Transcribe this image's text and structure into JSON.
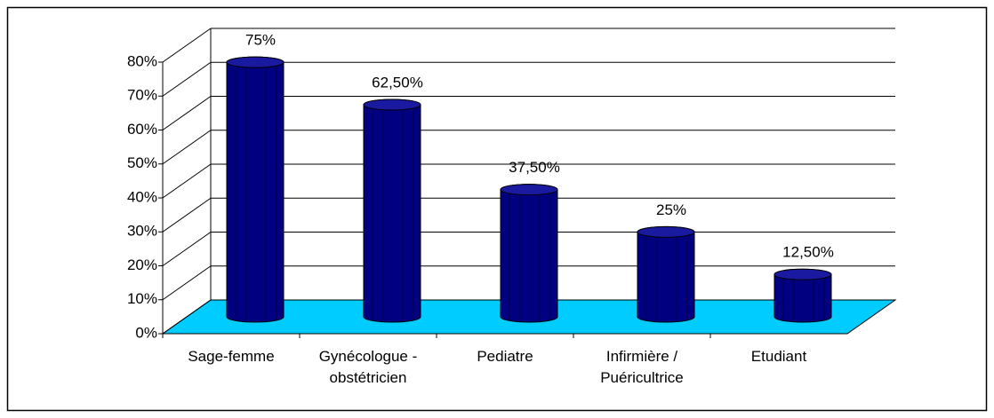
{
  "chart_data": {
    "type": "bar3d",
    "categories": [
      "Sage-femme",
      "Gynécologue - obstétricien",
      "Pediatre",
      "Infirmière / Puéricultrice",
      "Etudiant"
    ],
    "values": [
      75,
      62.5,
      37.5,
      25,
      12.5
    ],
    "value_labels": [
      "75%",
      "62,50%",
      "37,50%",
      "25%",
      "12,50%"
    ],
    "color": "#000080",
    "floor_color": "#00ccff",
    "ylim": [
      0,
      80
    ],
    "yticks": [
      {
        "value": 0,
        "label": "0%"
      },
      {
        "value": 10,
        "label": "10%"
      },
      {
        "value": 20,
        "label": "20%"
      },
      {
        "value": 30,
        "label": "30%"
      },
      {
        "value": 40,
        "label": "40%"
      },
      {
        "value": 50,
        "label": "50%"
      },
      {
        "value": 60,
        "label": "60%"
      },
      {
        "value": 70,
        "label": "70%"
      },
      {
        "value": 80,
        "label": "80%"
      }
    ],
    "grid": true
  }
}
